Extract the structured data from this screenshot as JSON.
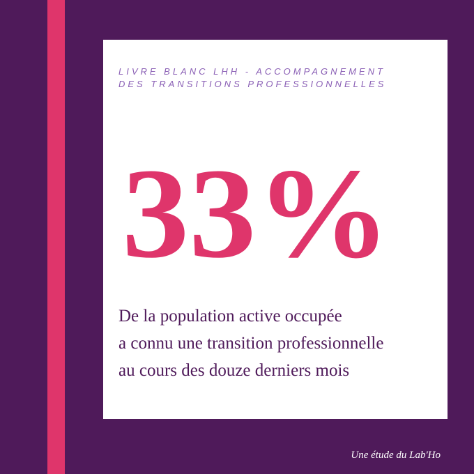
{
  "header": {
    "lines": [
      "LIVRE BLANC LHH - ACCOMPAGNEMENT",
      "DES TRANSITIONS PROFESSIONNELLES"
    ]
  },
  "stat": "33%",
  "description": {
    "lines": [
      "De la population active occupée",
      "a connu une transition professionnelle",
      "au cours des douze derniers mois"
    ]
  },
  "footer": "Une étude du Lab'Ho"
}
